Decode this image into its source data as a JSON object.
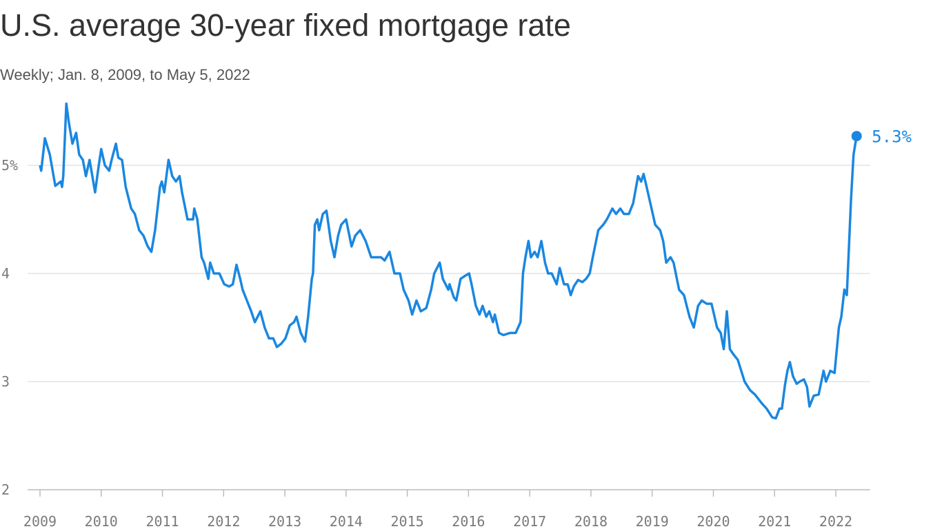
{
  "chart_data": {
    "type": "line",
    "title": "U.S. average 30-year fixed mortgage rate",
    "subtitle": "Weekly; Jan. 8, 2009, to May 5, 2022",
    "color": "#1a87e0",
    "grid": true,
    "xlim": [
      2009,
      2022.56
    ],
    "xticks": [
      2009,
      2010,
      2011,
      2012,
      2013,
      2014,
      2015,
      2016,
      2017,
      2018,
      2019,
      2020,
      2021,
      2022
    ],
    "ylim": [
      2,
      5.6
    ],
    "yticks": [
      2,
      3,
      4,
      {
        "value": 5,
        "label": "5%"
      }
    ],
    "x": [
      2009.0,
      2009.02,
      2009.08,
      2009.16,
      2009.25,
      2009.34,
      2009.36,
      2009.38,
      2009.43,
      2009.47,
      2009.53,
      2009.59,
      2009.64,
      2009.7,
      2009.75,
      2009.81,
      2009.9,
      2009.96,
      2010.0,
      2010.06,
      2010.13,
      2010.17,
      2010.24,
      2010.28,
      2010.34,
      2010.4,
      2010.49,
      2010.55,
      2010.62,
      2010.69,
      2010.76,
      2010.82,
      2010.88,
      2010.96,
      2010.99,
      2011.03,
      2011.1,
      2011.16,
      2011.22,
      2011.28,
      2011.32,
      2011.41,
      2011.5,
      2011.52,
      2011.57,
      2011.64,
      2011.68,
      2011.75,
      2011.78,
      2011.84,
      2011.93,
      2012.01,
      2012.09,
      2012.15,
      2012.21,
      2012.27,
      2012.31,
      2012.38,
      2012.45,
      2012.51,
      2012.6,
      2012.67,
      2012.74,
      2012.81,
      2012.87,
      2012.94,
      2013.01,
      2013.08,
      2013.15,
      2013.19,
      2013.26,
      2013.33,
      2013.38,
      2013.44,
      2013.46,
      2013.49,
      2013.53,
      2013.56,
      2013.62,
      2013.68,
      2013.75,
      2013.81,
      2013.87,
      2013.92,
      2014.0,
      2014.09,
      2014.15,
      2014.23,
      2014.32,
      2014.41,
      2014.49,
      2014.57,
      2014.63,
      2014.71,
      2014.79,
      2014.88,
      2014.94,
      2015.02,
      2015.08,
      2015.15,
      2015.22,
      2015.31,
      2015.39,
      2015.44,
      2015.53,
      2015.58,
      2015.67,
      2015.69,
      2015.76,
      2015.8,
      2015.87,
      2015.95,
      2016.01,
      2016.05,
      2016.12,
      2016.18,
      2016.23,
      2016.29,
      2016.34,
      2016.4,
      2016.43,
      2016.5,
      2016.57,
      2016.68,
      2016.77,
      2016.85,
      2016.89,
      2016.93,
      2016.98,
      2017.02,
      2017.08,
      2017.13,
      2017.19,
      2017.25,
      2017.3,
      2017.36,
      2017.44,
      2017.49,
      2017.56,
      2017.62,
      2017.67,
      2017.72,
      2017.79,
      2017.86,
      2017.92,
      2017.98,
      2018.03,
      2018.12,
      2018.2,
      2018.26,
      2018.35,
      2018.41,
      2018.48,
      2018.54,
      2018.62,
      2018.69,
      2018.77,
      2018.82,
      2018.86,
      2018.91,
      2018.99,
      2019.05,
      2019.13,
      2019.18,
      2019.23,
      2019.3,
      2019.35,
      2019.44,
      2019.52,
      2019.61,
      2019.68,
      2019.75,
      2019.81,
      2019.89,
      2019.97,
      2020.06,
      2020.12,
      2020.17,
      2020.22,
      2020.27,
      2020.33,
      2020.4,
      2020.51,
      2020.6,
      2020.68,
      2020.79,
      2020.87,
      2020.96,
      2021.02,
      2021.08,
      2021.12,
      2021.17,
      2021.21,
      2021.25,
      2021.3,
      2021.36,
      2021.41,
      2021.48,
      2021.53,
      2021.57,
      2021.64,
      2021.72,
      2021.8,
      2021.84,
      2021.91,
      2021.98,
      2022.05,
      2022.09,
      2022.14,
      2022.18,
      2022.25,
      2022.29,
      2022.34
    ],
    "values": [
      5.0,
      4.95,
      5.25,
      5.1,
      4.81,
      4.85,
      4.8,
      4.9,
      5.57,
      5.4,
      5.2,
      5.3,
      5.1,
      5.05,
      4.9,
      5.05,
      4.75,
      5.0,
      5.15,
      5.0,
      4.95,
      5.05,
      5.2,
      5.07,
      5.05,
      4.8,
      4.6,
      4.55,
      4.4,
      4.35,
      4.25,
      4.2,
      4.4,
      4.8,
      4.85,
      4.75,
      5.05,
      4.9,
      4.85,
      4.9,
      4.75,
      4.5,
      4.5,
      4.6,
      4.5,
      4.15,
      4.1,
      3.95,
      4.1,
      4.0,
      4.0,
      3.9,
      3.88,
      3.9,
      4.08,
      3.95,
      3.85,
      3.75,
      3.65,
      3.55,
      3.65,
      3.5,
      3.4,
      3.4,
      3.32,
      3.35,
      3.4,
      3.52,
      3.55,
      3.6,
      3.45,
      3.37,
      3.6,
      3.95,
      4.0,
      4.45,
      4.5,
      4.4,
      4.55,
      4.58,
      4.3,
      4.15,
      4.35,
      4.45,
      4.5,
      4.25,
      4.35,
      4.4,
      4.3,
      4.15,
      4.15,
      4.15,
      4.12,
      4.2,
      4.0,
      4.0,
      3.85,
      3.75,
      3.62,
      3.75,
      3.65,
      3.68,
      3.85,
      4.0,
      4.1,
      3.95,
      3.85,
      3.9,
      3.78,
      3.75,
      3.95,
      3.98,
      4.0,
      3.9,
      3.7,
      3.62,
      3.7,
      3.6,
      3.65,
      3.55,
      3.62,
      3.45,
      3.43,
      3.45,
      3.45,
      3.55,
      4.0,
      4.15,
      4.3,
      4.15,
      4.2,
      4.15,
      4.3,
      4.1,
      4.0,
      4.0,
      3.9,
      4.05,
      3.9,
      3.9,
      3.8,
      3.88,
      3.94,
      3.92,
      3.95,
      4.0,
      4.15,
      4.4,
      4.45,
      4.5,
      4.6,
      4.55,
      4.6,
      4.55,
      4.55,
      4.65,
      4.9,
      4.85,
      4.92,
      4.8,
      4.6,
      4.45,
      4.4,
      4.3,
      4.1,
      4.15,
      4.1,
      3.85,
      3.8,
      3.6,
      3.5,
      3.7,
      3.75,
      3.72,
      3.72,
      3.5,
      3.45,
      3.3,
      3.65,
      3.3,
      3.25,
      3.2,
      3.0,
      2.92,
      2.88,
      2.8,
      2.75,
      2.67,
      2.66,
      2.75,
      2.75,
      2.97,
      3.1,
      3.18,
      3.05,
      2.98,
      3.0,
      3.02,
      2.95,
      2.77,
      2.87,
      2.88,
      3.1,
      3.0,
      3.1,
      3.08,
      3.5,
      3.6,
      3.85,
      3.8,
      4.7,
      5.1,
      5.27
    ],
    "value_labels": [
      null,
      null,
      null,
      null,
      null,
      null,
      null,
      null,
      null,
      null,
      null,
      null,
      null,
      null,
      null,
      null,
      null,
      null,
      null,
      null,
      null,
      null,
      null,
      null,
      null,
      null,
      null,
      null,
      null,
      null,
      null,
      null,
      null,
      null,
      null,
      null,
      null,
      null,
      null,
      null,
      null,
      null,
      null,
      null,
      null,
      null,
      null,
      null,
      null,
      null,
      null,
      null,
      null,
      null,
      null,
      null,
      null,
      null,
      null,
      null,
      null,
      null,
      null,
      null,
      null,
      null,
      null,
      null,
      null,
      null,
      null,
      null,
      null,
      null,
      null,
      null,
      null,
      null,
      null,
      null,
      null,
      null,
      null,
      null,
      null,
      null,
      null,
      null,
      null,
      null,
      null,
      null,
      null,
      null,
      null,
      null,
      null,
      null,
      null,
      null,
      null,
      null,
      null,
      null,
      null,
      null,
      null,
      null,
      null,
      null,
      null,
      null,
      null,
      null,
      null,
      null,
      null,
      null,
      null,
      null,
      null,
      null,
      null,
      null,
      null,
      null,
      null,
      null,
      null,
      null,
      null,
      null,
      null,
      null,
      null,
      null,
      null,
      null,
      null,
      null,
      null,
      null,
      null,
      null,
      null,
      null,
      null,
      null,
      null,
      null,
      null,
      null,
      null,
      null,
      null,
      null,
      null,
      null,
      null,
      null,
      null,
      null,
      null,
      null,
      null,
      null,
      null,
      null,
      null,
      null,
      null,
      null,
      null,
      null,
      null,
      null,
      null,
      null,
      null,
      null,
      null,
      null,
      null,
      null,
      null,
      null,
      null,
      null,
      null,
      null,
      null,
      null,
      null,
      null,
      null,
      null,
      null,
      null,
      null,
      null,
      null,
      null,
      null,
      null,
      null,
      null,
      null,
      null,
      null,
      null,
      null,
      null,
      "5.3%"
    ]
  }
}
